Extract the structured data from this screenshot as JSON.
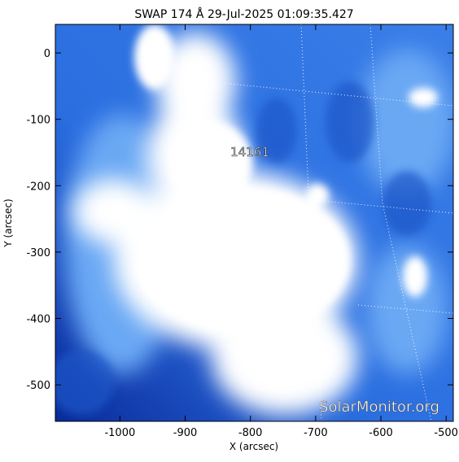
{
  "chart_data": {
    "type": "image",
    "title": "SWAP 174 Å 29-Jul-2025 01:09:35.427",
    "xlabel": "X (arcsec)",
    "ylabel": "Y (arcsec)",
    "xlim": [
      -1099,
      -489
    ],
    "ylim": [
      -555,
      43
    ],
    "xticks": [
      -1000,
      -900,
      -800,
      -700,
      -600,
      -500
    ],
    "yticks": [
      0,
      -100,
      -200,
      -300,
      -400,
      -500
    ],
    "annotations": [
      "14161"
    ],
    "watermark": "SolarMonitor.org"
  }
}
